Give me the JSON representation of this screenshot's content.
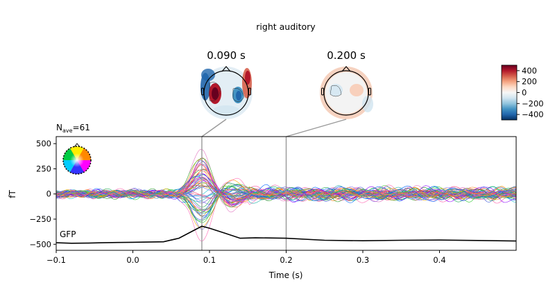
{
  "title": "right auditory",
  "nave": {
    "prefix": "N",
    "subscript": "ave",
    "suffix": "=61"
  },
  "topomaps": [
    {
      "time_label": "0.090 s",
      "time": 0.09
    },
    {
      "time_label": "0.200 s",
      "time": 0.2
    }
  ],
  "colorbar": {
    "ticks": [
      "400",
      "200",
      "0",
      "−200",
      "−400"
    ],
    "range": [
      -500,
      500
    ],
    "colors": [
      "#053061",
      "#2166ac",
      "#4393c3",
      "#92c5de",
      "#d1e5f0",
      "#f7f7f7",
      "#fddbc7",
      "#f4a582",
      "#d6604d",
      "#b2182b",
      "#67001f"
    ]
  },
  "chart_data": {
    "type": "line",
    "xlabel": "Time (s)",
    "ylabel": "fT",
    "xlim": [
      -0.1,
      0.5
    ],
    "ylim": [
      -560,
      570
    ],
    "x_ticks": [
      -0.1,
      0.0,
      0.1,
      0.2,
      0.3,
      0.4
    ],
    "x_tick_labels": [
      "−0.1",
      "0.0",
      "0.1",
      "0.2",
      "0.3",
      "0.4"
    ],
    "y_ticks": [
      500,
      250,
      0,
      -250,
      -500
    ],
    "y_tick_labels": [
      "500",
      "250",
      "0",
      "−250",
      "−500"
    ],
    "gfp_label": "GFP",
    "n_channels_approx": 60,
    "peak_positive_fT": 520,
    "peak_negative_fT": -320,
    "peak_time": 0.09,
    "gfp_series": {
      "x": [
        -0.1,
        -0.08,
        -0.06,
        -0.04,
        -0.02,
        0.0,
        0.02,
        0.04,
        0.06,
        0.08,
        0.09,
        0.1,
        0.12,
        0.14,
        0.16,
        0.2,
        0.25,
        0.3,
        0.35,
        0.4,
        0.45,
        0.5
      ],
      "y": [
        -485,
        -490,
        -488,
        -485,
        -482,
        -480,
        -478,
        -475,
        -440,
        -360,
        -320,
        -340,
        -390,
        -440,
        -435,
        -440,
        -460,
        -465,
        -460,
        -458,
        -462,
        -468
      ]
    },
    "markers": [
      0.09,
      0.2
    ]
  }
}
